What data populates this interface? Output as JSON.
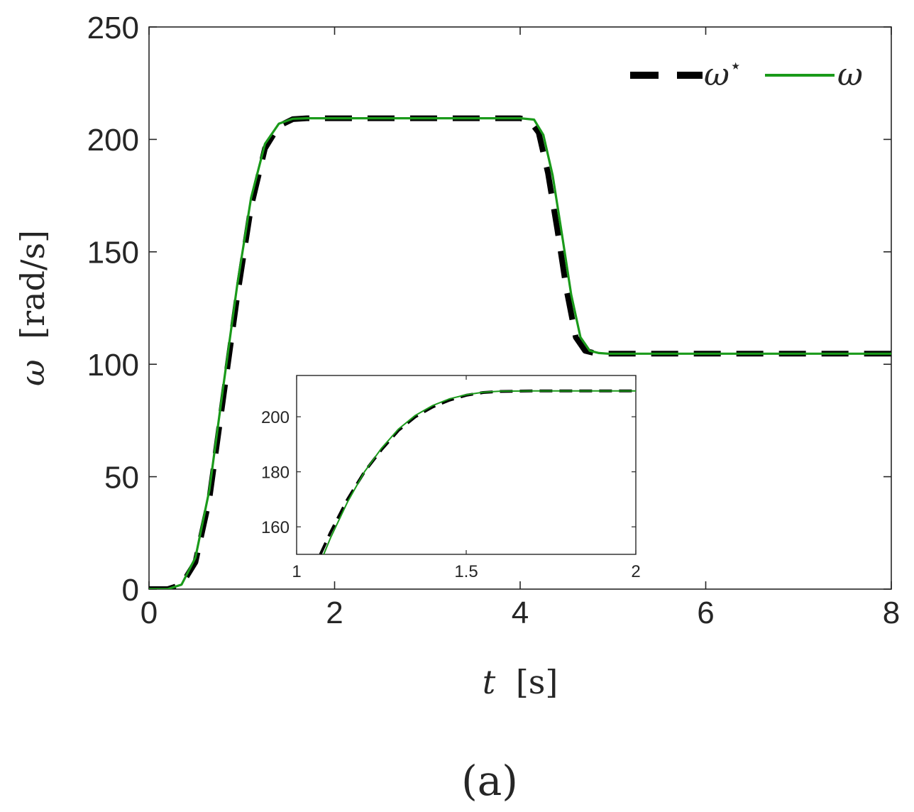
{
  "figure_label": "(a)",
  "chart_data": [
    {
      "type": "line",
      "x_axis": {
        "symbol": "t",
        "unit": "[s]",
        "range": [
          0,
          8
        ],
        "ticks": [
          0,
          2,
          4,
          6,
          8
        ],
        "tick_labels": [
          "0",
          "2",
          "4",
          "6",
          "8"
        ]
      },
      "y_axis": {
        "symbol": "ω",
        "unit": "[rad/s]",
        "range": [
          0,
          250
        ],
        "ticks": [
          0,
          50,
          100,
          150,
          200,
          250
        ],
        "tick_labels": [
          "0",
          "50",
          "100",
          "150",
          "200",
          "250"
        ]
      },
      "grid": false,
      "legend": {
        "placement": "top-right",
        "entries": [
          "ω",
          "ω"
        ],
        "superscript": "⋆"
      },
      "series": [
        {
          "name": "ω⋆",
          "style": "dashed",
          "color": "#000000",
          "x": [
            0,
            0.2,
            0.35,
            0.5,
            0.65,
            0.8,
            0.95,
            1.1,
            1.25,
            1.4,
            1.55,
            1.7,
            2.0,
            3.0,
            4.0,
            4.1,
            4.2,
            4.3,
            4.4,
            4.5,
            4.6,
            4.7,
            4.8,
            4.9,
            5.0,
            6.0,
            7.0,
            8.0
          ],
          "y": [
            0,
            0,
            2,
            12,
            40,
            85,
            130,
            170,
            196,
            206,
            209,
            209.4,
            209.4,
            209.4,
            209.4,
            208.5,
            203,
            185,
            160,
            133,
            112,
            106,
            105,
            104.7,
            104.7,
            104.7,
            104.7,
            104.7
          ]
        },
        {
          "name": "ω",
          "style": "solid",
          "color": "#1a9a1a",
          "x": [
            0,
            0.2,
            0.35,
            0.5,
            0.65,
            0.8,
            0.95,
            1.1,
            1.25,
            1.4,
            1.55,
            1.7,
            2.0,
            3.0,
            4.0,
            4.15,
            4.25,
            4.35,
            4.45,
            4.55,
            4.65,
            4.75,
            4.85,
            4.95,
            5.0,
            6.0,
            7.0,
            8.0
          ],
          "y": [
            0,
            0,
            2,
            14,
            44,
            90,
            135,
            174,
            198,
            207,
            209.2,
            209.4,
            209.4,
            209.4,
            209.4,
            208.8,
            202,
            184,
            158,
            131,
            112,
            106,
            105,
            104.7,
            104.7,
            104.7,
            104.7,
            104.7
          ]
        }
      ]
    },
    {
      "type": "line",
      "role": "inset",
      "x_axis": {
        "range": [
          1,
          2
        ],
        "ticks": [
          1,
          1.5,
          2
        ],
        "tick_labels": [
          "1",
          "1.5",
          "2"
        ]
      },
      "y_axis": {
        "range": [
          150,
          215
        ],
        "ticks": [
          160,
          180,
          200
        ],
        "tick_labels": [
          "160",
          "180",
          "200"
        ]
      },
      "grid": false,
      "series": [
        {
          "name": "ω⋆",
          "style": "dashed",
          "color": "#000000",
          "x": [
            1.07,
            1.1,
            1.15,
            1.2,
            1.25,
            1.3,
            1.35,
            1.4,
            1.45,
            1.5,
            1.55,
            1.6,
            1.7,
            1.8,
            1.9,
            2.0
          ],
          "y": [
            150,
            158,
            170,
            180,
            188,
            195,
            200,
            203.5,
            206,
            207.8,
            208.8,
            209.2,
            209.4,
            209.4,
            209.4,
            209.4
          ]
        },
        {
          "name": "ω",
          "style": "solid",
          "color": "#1a9a1a",
          "x": [
            1.08,
            1.1,
            1.15,
            1.2,
            1.25,
            1.3,
            1.35,
            1.4,
            1.45,
            1.5,
            1.55,
            1.6,
            1.7,
            1.8,
            1.9,
            2.0
          ],
          "y": [
            150,
            156,
            169,
            180,
            188.5,
            195.5,
            200.5,
            204,
            206.5,
            208,
            208.9,
            209.3,
            209.4,
            209.4,
            209.4,
            209.4
          ]
        }
      ]
    }
  ]
}
